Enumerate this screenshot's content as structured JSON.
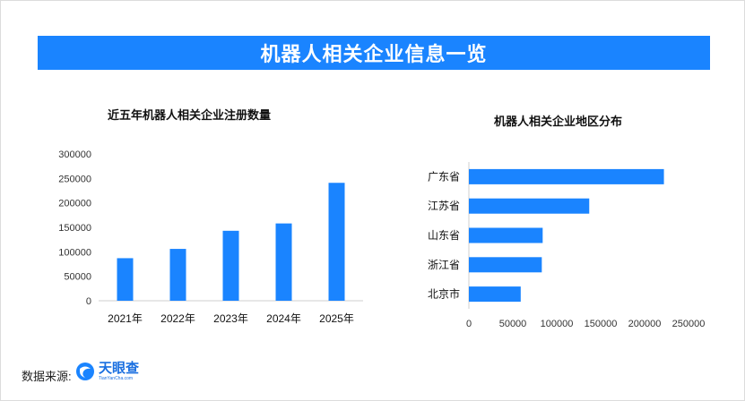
{
  "banner": {
    "title": "机器人相关企业信息一览"
  },
  "source": {
    "label": "数据来源:",
    "logo_name": "天眼查",
    "logo_sub": "TianYanCha.com"
  },
  "colors": {
    "accent": "#1a84ff",
    "bar": "#1a84ff"
  },
  "chart_data": [
    {
      "type": "bar",
      "title": "近五年机器人相关企业注册数量",
      "categories": [
        "2021年",
        "2022年",
        "2023年",
        "2024年",
        "2025年"
      ],
      "values": [
        87000,
        106000,
        143000,
        158000,
        241000
      ],
      "ylim": [
        0,
        300000
      ],
      "yticks": [
        0,
        50000,
        100000,
        150000,
        200000,
        250000,
        300000
      ],
      "grid": false
    },
    {
      "type": "bar",
      "orientation": "horizontal",
      "title": "机器人相关企业地区分布",
      "categories": [
        "广东省",
        "江苏省",
        "山东省",
        "浙江省",
        "北京市"
      ],
      "values": [
        222000,
        137000,
        84000,
        83000,
        59000
      ],
      "xlim": [
        0,
        250000
      ],
      "xticks": [
        0,
        50000,
        100000,
        150000,
        200000,
        250000
      ],
      "grid": false
    }
  ]
}
